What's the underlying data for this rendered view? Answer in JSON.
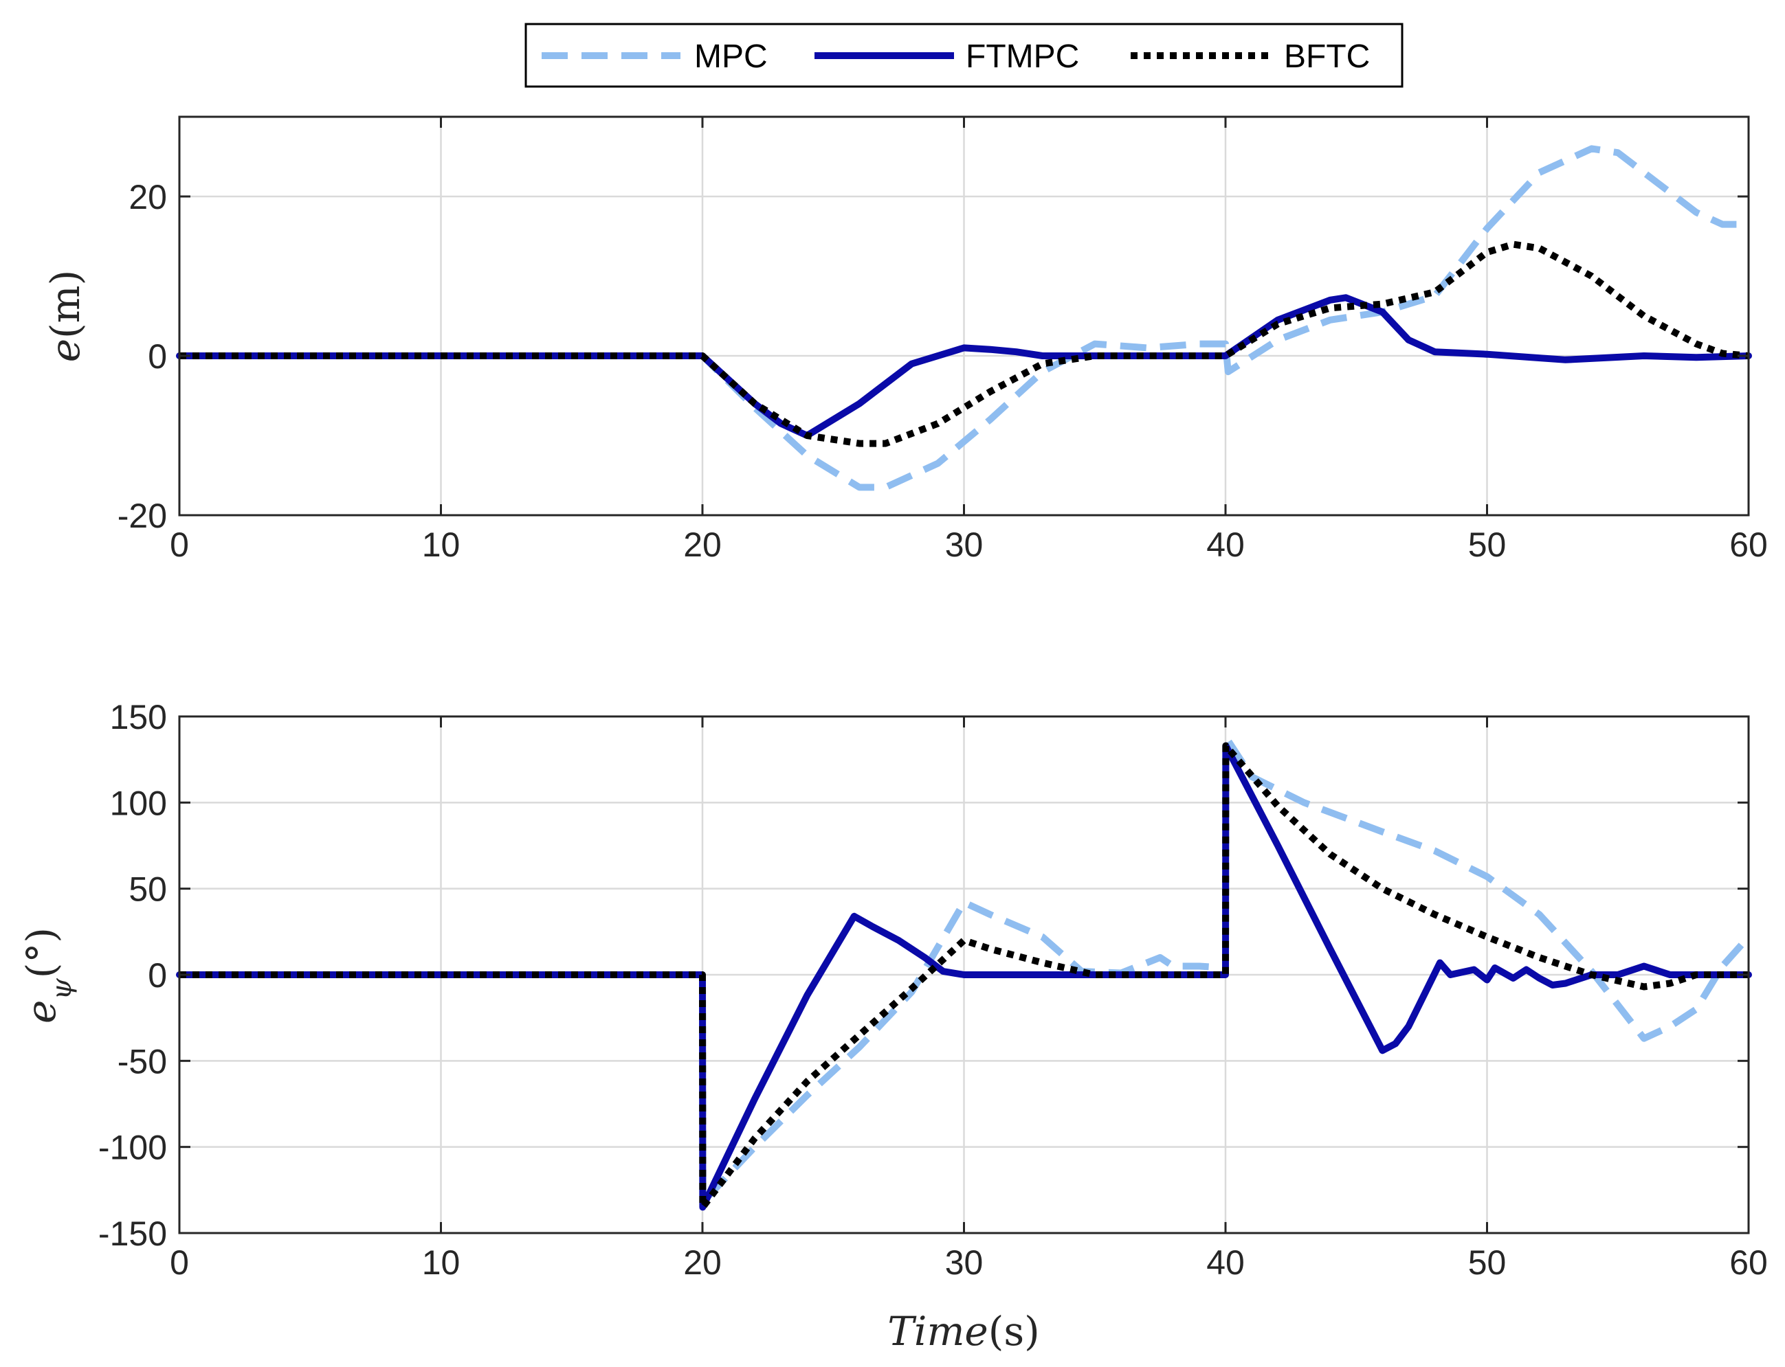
{
  "colors": {
    "mpc": "#8fbdf0",
    "ftmpc": "#0a0aa8",
    "bftc": "#000000",
    "axis": "#262626",
    "grid": "#dadada"
  },
  "legend": {
    "entries": [
      "MPC",
      "FTMPC",
      "BFTC"
    ],
    "location": "top-center"
  },
  "chart_data": [
    {
      "type": "line",
      "title": "",
      "xlabel": "",
      "ylabel": {
        "var": "e",
        "unit": "(m)"
      },
      "xlim": [
        0,
        60
      ],
      "ylim": [
        -20,
        30
      ],
      "xticks": [
        0,
        10,
        20,
        30,
        40,
        50,
        60
      ],
      "yticks": [
        -20,
        0,
        20
      ],
      "grid": true,
      "series": [
        {
          "name": "MPC",
          "style": "dashed",
          "x": [
            0,
            20,
            22,
            24,
            26,
            27,
            29,
            31,
            33,
            35,
            37,
            39,
            40,
            40.1,
            42,
            44,
            46,
            48,
            50,
            52,
            54,
            55,
            56,
            58,
            59,
            60
          ],
          "y": [
            0,
            0,
            -6.5,
            -12.5,
            -16.5,
            -16.5,
            -13.5,
            -8,
            -2,
            1.5,
            1,
            1.5,
            1.5,
            -2,
            2,
            4.5,
            5.5,
            7.5,
            16,
            23,
            26,
            25.5,
            23,
            18,
            16.5,
            16.5
          ]
        },
        {
          "name": "FTMPC",
          "style": "solid",
          "x": [
            0,
            20,
            22,
            23,
            24,
            26,
            28,
            30,
            31,
            32,
            33,
            35,
            37,
            40,
            42,
            44,
            44.6,
            46,
            47,
            48,
            50,
            53,
            56,
            58,
            60
          ],
          "y": [
            0,
            0,
            -6,
            -8.5,
            -10,
            -6,
            -1,
            1,
            0.8,
            0.5,
            0,
            0,
            0,
            0,
            4.5,
            7,
            7.3,
            5.5,
            2,
            0.5,
            0.2,
            -0.5,
            0,
            -0.2,
            0
          ]
        },
        {
          "name": "BFTC",
          "style": "dotted",
          "x": [
            0,
            20,
            22,
            24,
            26,
            27,
            29,
            31,
            33,
            35,
            37,
            40,
            42,
            44,
            46,
            48,
            50,
            51,
            52,
            54,
            56,
            58,
            59,
            60
          ],
          "y": [
            0,
            0,
            -6,
            -10,
            -11,
            -11,
            -8.5,
            -4.5,
            -1,
            0,
            0,
            0,
            4,
            6,
            6.5,
            8,
            13,
            14,
            13.5,
            10,
            5,
            1.5,
            0.3,
            0
          ]
        }
      ]
    },
    {
      "type": "line",
      "title": "",
      "xlabel": {
        "var": "Time",
        "unit": "(s)"
      },
      "ylabel": {
        "var": "e",
        "sub": "ψ",
        "unit": "(°)"
      },
      "xlim": [
        0,
        60
      ],
      "ylim": [
        -150,
        150
      ],
      "xticks": [
        0,
        10,
        20,
        30,
        40,
        50,
        60
      ],
      "yticks": [
        -150,
        -100,
        -50,
        0,
        50,
        100,
        150
      ],
      "grid": true,
      "series": [
        {
          "name": "MPC",
          "style": "dashed",
          "x": [
            0,
            20,
            20.01,
            22,
            24,
            26,
            28,
            30,
            31,
            33,
            34.5,
            36,
            37.5,
            38,
            39,
            40,
            40.01,
            41,
            43,
            46,
            48,
            50,
            52,
            54,
            56,
            57,
            58,
            59,
            60
          ],
          "y": [
            0,
            0,
            -132,
            -100,
            -70,
            -42,
            -10,
            42,
            35,
            22,
            2,
            1,
            10,
            5,
            5,
            4,
            138,
            115,
            100,
            83,
            72,
            57,
            35,
            2,
            -37,
            -30,
            -20,
            5,
            22
          ]
        },
        {
          "name": "FTMPC",
          "style": "solid",
          "x": [
            0,
            20,
            20.01,
            22,
            24,
            25.8,
            26.5,
            27.5,
            28.5,
            29.2,
            30,
            31,
            33,
            35,
            40,
            40.01,
            42,
            44,
            46,
            46.5,
            47,
            48.2,
            48.6,
            49.5,
            50,
            50.3,
            51,
            51.5,
            52,
            52.5,
            53,
            54,
            55,
            56,
            57,
            60
          ],
          "y": [
            0,
            0,
            -135,
            -72,
            -12,
            34,
            28,
            20,
            10,
            2,
            0,
            0,
            0,
            0,
            0,
            133,
            75,
            15,
            -44,
            -40,
            -30,
            7,
            0,
            3,
            -3,
            4,
            -2,
            3,
            -2,
            -6,
            -5,
            0,
            0,
            5,
            0,
            0
          ]
        },
        {
          "name": "BFTC",
          "style": "dotted",
          "x": [
            0,
            20,
            20.01,
            22,
            24,
            26,
            28,
            30,
            31,
            33,
            35,
            40,
            40.01,
            42,
            44,
            46,
            48,
            50,
            52,
            54,
            56,
            57,
            58,
            60
          ],
          "y": [
            0,
            0,
            -135,
            -95,
            -62,
            -35,
            -8,
            20,
            15,
            7,
            0,
            0,
            133,
            98,
            70,
            50,
            35,
            22,
            10,
            0,
            -7,
            -5,
            0,
            0
          ]
        }
      ]
    }
  ]
}
